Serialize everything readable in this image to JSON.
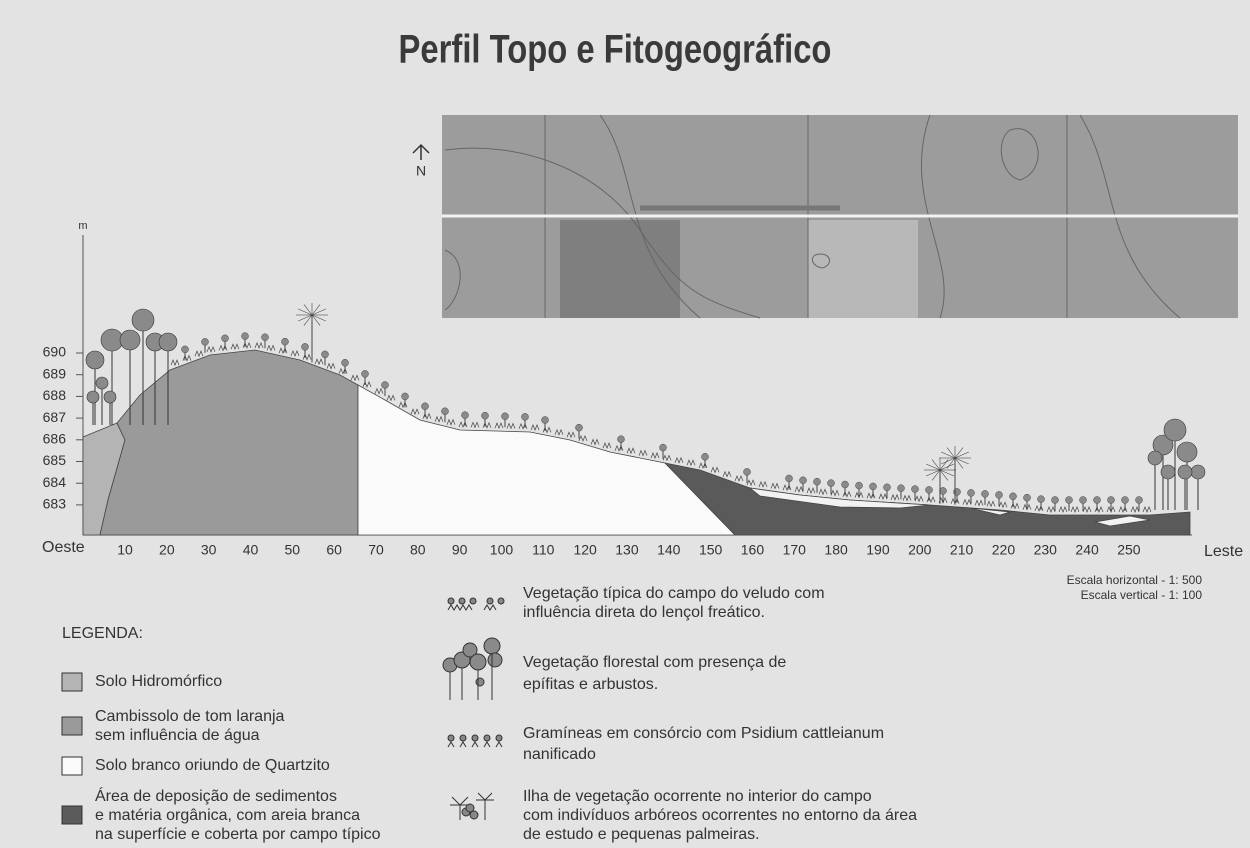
{
  "title": "Perfil Topo e Fitogeográfico",
  "north": "N",
  "y_axis": {
    "unit": "m",
    "ticks": [
      "690",
      "689",
      "688",
      "687",
      "686",
      "685",
      "684",
      "683"
    ]
  },
  "x_axis": {
    "start": "Oeste",
    "end": "Leste",
    "ticks": [
      "10",
      "20",
      "30",
      "40",
      "50",
      "60",
      "70",
      "80",
      "90",
      "100",
      "110",
      "120",
      "130",
      "140",
      "150",
      "160",
      "170",
      "180",
      "190",
      "200",
      "210",
      "220",
      "230",
      "240",
      "250"
    ]
  },
  "scale": [
    "Escala horizontal - 1: 500",
    "Escala vertical - 1: 100"
  ],
  "legend": {
    "heading": "LEGENDA:",
    "soils": [
      {
        "lines": [
          "Solo Hidromórfico"
        ]
      },
      {
        "lines": [
          "Cambissolo de tom laranja",
          "sem influência de água"
        ]
      },
      {
        "lines": [
          "Solo branco oriundo de Quartzito"
        ]
      },
      {
        "lines": [
          "Área de deposição de sedimentos",
          "e matéria orgânica, com areia branca",
          "na superfície e coberta por campo típico"
        ]
      }
    ],
    "vegetation": [
      {
        "lines": [
          "Vegetação típica do campo do veludo com",
          "influência direta do lençol freático."
        ]
      },
      {
        "lines": [
          "Vegetação florestal com presença de",
          "epífitas e arbustos."
        ]
      },
      {
        "lines": [
          "Gramíneas em consórcio com Psidium cattleianum",
          "nanificado"
        ]
      },
      {
        "lines": [
          "Ilha de vegetação ocorrente no interior do campo",
          "com indivíduos arbóreos ocorrentes no entorno da área",
          "de estudo e pequenas palmeiras."
        ]
      }
    ]
  }
}
